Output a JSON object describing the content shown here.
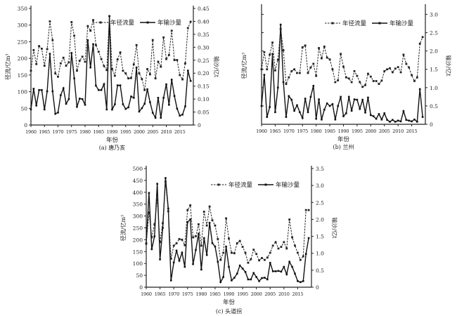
{
  "chart_data": [
    {
      "type": "line",
      "caption": "(a) 唐乃亥",
      "xlabel": "年份",
      "ylabel": "径流/亿m³",
      "y2label": "输沙/亿t",
      "xlim": [
        1960,
        2020
      ],
      "xticks": [
        1960,
        1965,
        1970,
        1975,
        1980,
        1985,
        1990,
        1995,
        2000,
        2005,
        2010,
        2015
      ],
      "ylim": [
        0,
        350
      ],
      "yticks": [
        0,
        50,
        100,
        150,
        200,
        250,
        300,
        350
      ],
      "y2lim": [
        0,
        0.45
      ],
      "y2ticks": [
        "0",
        "0.05",
        "0.10",
        "0.15",
        "0.20",
        "0.25",
        "0.30",
        "0.35",
        "0.40",
        "0.45"
      ],
      "legend": {
        "position": "top-right",
        "runoff": "年径流量",
        "sediment": "年输沙量"
      },
      "runoff": [
        163,
        225,
        183,
        237,
        229,
        178,
        228,
        311,
        255,
        155,
        145,
        185,
        202,
        178,
        188,
        309,
        268,
        163,
        193,
        205,
        190,
        297,
        283,
        315,
        240,
        220,
        198,
        177,
        165,
        327,
        168,
        148,
        197,
        218,
        163,
        155,
        140,
        141,
        182,
        240,
        155,
        138,
        105,
        168,
        152,
        255,
        140,
        190,
        175,
        263,
        198,
        210,
        283,
        195,
        195,
        150,
        137,
        185,
        291,
        310
      ],
      "sediment": [
        0.06,
        0.14,
        0.075,
        0.135,
        0.135,
        0.06,
        0.13,
        0.275,
        0.13,
        0.043,
        0.048,
        0.115,
        0.142,
        0.082,
        0.1,
        0.278,
        0.18,
        0.07,
        0.102,
        0.1,
        0.078,
        0.327,
        0.222,
        0.312,
        0.152,
        0.135,
        0.135,
        0.158,
        0.06,
        0.42,
        0.06,
        0.08,
        0.153,
        0.153,
        0.08,
        0.062,
        0.068,
        0.11,
        0.105,
        0.222,
        0.052,
        0.065,
        0.082,
        0.138,
        0.088,
        0.047,
        0.028,
        0.105,
        0.028,
        0.105,
        0.157,
        0.078,
        0.175,
        0.112,
        0.063,
        0.036,
        0.04,
        0.072,
        0.21,
        0.17
      ]
    },
    {
      "type": "line",
      "caption": "(b) 兰州",
      "xlabel": "年份",
      "ylabel": "径流/亿m³",
      "y2label": "输沙/亿t",
      "xlim": [
        1960,
        2020
      ],
      "xticks": [
        1960,
        1965,
        1970,
        1975,
        1980,
        1985,
        1990,
        1995,
        2000,
        2005,
        2010,
        2015
      ],
      "ylim": [
        0,
        3.2
      ],
      "yticks": [],
      "y2lim": [
        0,
        3.2
      ],
      "y2ticks": [
        "0",
        "0.5",
        "1.0",
        "1.5",
        "2.0",
        "2.5",
        "3.0"
      ],
      "legend": {
        "position": "top-right",
        "runoff": "年径流量",
        "sediment": "年输沙量"
      },
      "runoff": [
        1.5,
        1.97,
        1.5,
        1.9,
        2.23,
        1.47,
        1.76,
        2.6,
        2.02,
        1.1,
        1.28,
        1.45,
        1.5,
        1.4,
        1.4,
        2.1,
        2.15,
        1.4,
        1.55,
        1.65,
        1.32,
        2.08,
        1.8,
        2.12,
        1.82,
        1.77,
        1.5,
        1.15,
        1.2,
        1.92,
        1.57,
        1.28,
        1.25,
        1.15,
        1.45,
        1.32,
        1.15,
        1.02,
        1.07,
        1.38,
        1.3,
        1.18,
        1.18,
        1.1,
        1.19,
        1.45,
        1.5,
        1.53,
        1.42,
        1.52,
        1.56,
        1.42,
        1.9,
        1.65,
        1.55,
        1.34,
        1.18,
        1.28,
        2.2,
        2.38
      ],
      "sediment": [
        0.5,
        1.35,
        0.2,
        0.47,
        1.92,
        0.33,
        1.0,
        2.72,
        1.15,
        0.2,
        0.77,
        0.67,
        0.37,
        0.52,
        0.33,
        0.17,
        0.7,
        0.33,
        0.75,
        1.05,
        0.15,
        0.68,
        0.13,
        0.4,
        0.57,
        0.5,
        0.55,
        0.13,
        0.5,
        0.75,
        0.22,
        0.3,
        0.75,
        0.37,
        0.68,
        0.67,
        0.42,
        0.67,
        0.32,
        0.73,
        0.25,
        0.22,
        0.15,
        0.28,
        0.13,
        0.3,
        0.12,
        0.07,
        0.12,
        0.07,
        0.1,
        0.08,
        0.36,
        0.12,
        0.1,
        0.08,
        0.13,
        0.07,
        0.96,
        0.2
      ]
    },
    {
      "type": "line",
      "caption": "(c) 头道拐",
      "xlabel": "年份",
      "ylabel": "径流/亿m³",
      "y2label": "输沙/亿t",
      "xlim": [
        1960,
        2020
      ],
      "xticks": [
        1960,
        1965,
        1970,
        1975,
        1980,
        1985,
        1990,
        1995,
        2000,
        2005,
        2010,
        2015
      ],
      "ylim": [
        0,
        500
      ],
      "yticks": [
        0,
        50,
        100,
        150,
        200,
        250,
        300,
        350,
        400,
        450,
        500
      ],
      "y2lim": [
        0,
        3.5
      ],
      "y2ticks": [
        "0",
        "0.5",
        "1.0",
        "1.5",
        "2.0",
        "2.5",
        "3.0",
        "3.5"
      ],
      "legend": {
        "position": "top-right",
        "runoff": "年径流量",
        "sediment": "年输沙量"
      },
      "runoff": [
        185,
        315,
        210,
        265,
        370,
        190,
        270,
        445,
        320,
        120,
        175,
        185,
        203,
        200,
        177,
        325,
        345,
        210,
        215,
        265,
        175,
        318,
        260,
        340,
        282,
        260,
        203,
        115,
        145,
        290,
        205,
        145,
        143,
        185,
        195,
        170,
        145,
        103,
        118,
        158,
        140,
        113,
        123,
        115,
        125,
        145,
        175,
        190,
        163,
        170,
        190,
        163,
        285,
        210,
        175,
        145,
        115,
        130,
        325,
        325
      ],
      "sediment": [
        1.28,
        2.78,
        1.12,
        1.5,
        3.05,
        0.82,
        1.75,
        3.22,
        2.32,
        0.2,
        0.73,
        1.08,
        0.78,
        1.02,
        0.6,
        1.92,
        2.0,
        0.68,
        1.1,
        1.58,
        0.52,
        1.45,
        0.95,
        1.9,
        1.3,
        1.2,
        0.75,
        0.15,
        0.3,
        1.2,
        0.6,
        0.2,
        0.28,
        0.4,
        0.64,
        0.55,
        0.45,
        0.23,
        0.23,
        0.42,
        0.3,
        0.18,
        0.27,
        0.28,
        0.23,
        0.72,
        0.47,
        0.47,
        0.48,
        0.46,
        0.6,
        0.38,
        0.75,
        0.6,
        0.4,
        0.18,
        0.15,
        0.18,
        0.98,
        1.45
      ]
    }
  ]
}
